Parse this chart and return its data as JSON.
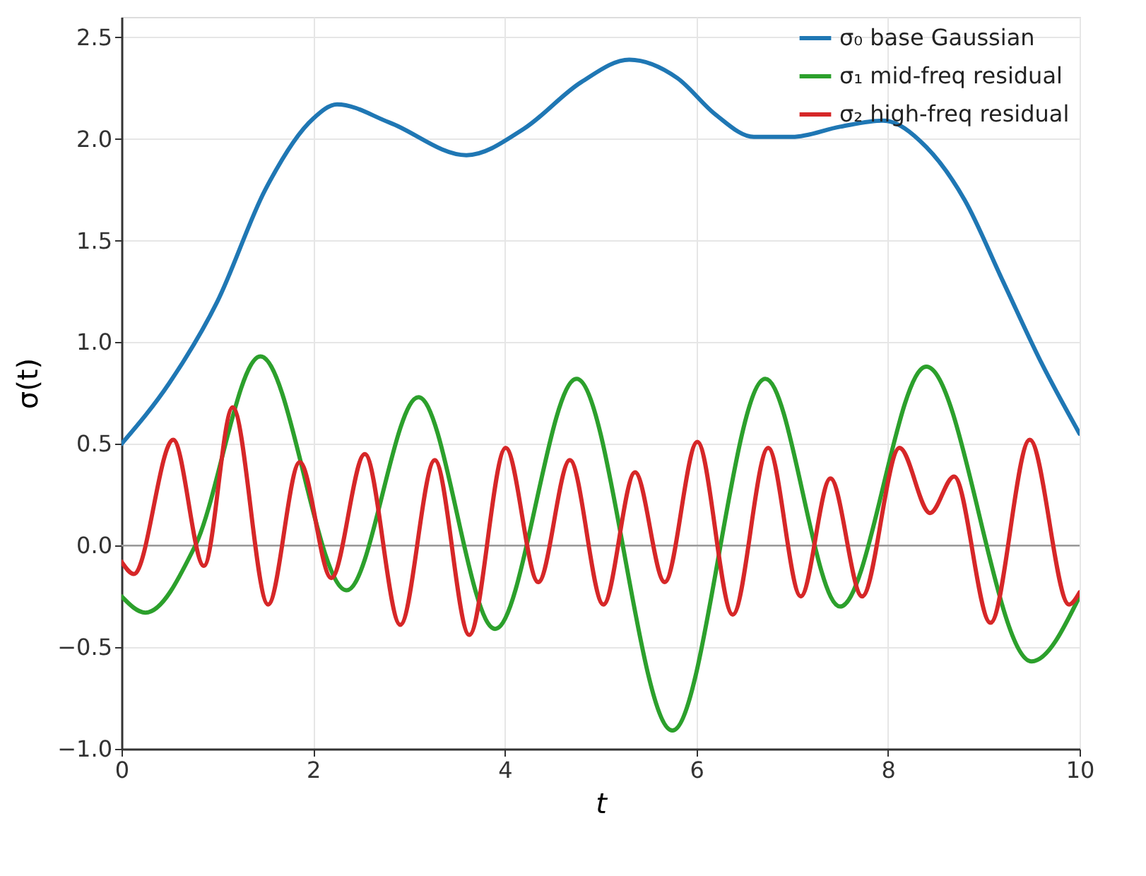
{
  "chart_data": {
    "type": "line",
    "xlabel": "t",
    "ylabel": "σ(t)",
    "xlim": [
      0,
      10
    ],
    "ylim": [
      -1.0,
      2.6
    ],
    "xticks": [
      0,
      2,
      4,
      6,
      8,
      10
    ],
    "yticks": [
      {
        "value": -1.0,
        "label": "−1.0"
      },
      {
        "value": -0.5,
        "label": "−0.5"
      },
      {
        "value": 0,
        "label": "0.0"
      },
      {
        "value": 0.5,
        "label": "0.5"
      },
      {
        "value": 1.0,
        "label": "1.0"
      },
      {
        "value": 1.5,
        "label": "1.5"
      },
      {
        "value": 2.0,
        "label": "2.0"
      },
      {
        "value": 2.5,
        "label": "2.5"
      }
    ],
    "grid": true,
    "legend": "top right",
    "marker": "none",
    "line_style": "solid",
    "ref_lines": [
      {
        "axis": "y",
        "value": 0,
        "color": "#999999"
      }
    ],
    "series": [
      {
        "name": "σ₀  base Gaussian",
        "color": "#1f77b4",
        "x": [
          0,
          0.5,
          1,
          1.5,
          2,
          2.25,
          2.8,
          3.6,
          4.2,
          4.8,
          5.3,
          5.8,
          6.2,
          6.6,
          7.0,
          7.5,
          7.95,
          8.4,
          8.8,
          9.2,
          9.6,
          10
        ],
        "values": [
          0.5,
          0.8,
          1.2,
          1.75,
          2.1,
          2.17,
          2.08,
          1.92,
          2.05,
          2.28,
          2.39,
          2.3,
          2.12,
          2.01,
          2.01,
          2.06,
          2.09,
          1.96,
          1.7,
          1.3,
          0.9,
          0.55
        ]
      },
      {
        "name": "σ₁  mid-freq residual",
        "color": "#2ca02c",
        "x": [
          0,
          0.25,
          0.77,
          1.45,
          2.35,
          3.1,
          3.9,
          4.75,
          5.75,
          6.72,
          7.5,
          8.4,
          9.5,
          10
        ],
        "values": [
          -0.25,
          -0.33,
          0,
          0.93,
          -0.22,
          0.73,
          -0.41,
          0.82,
          -0.91,
          0.82,
          -0.3,
          0.88,
          -0.57,
          -0.25
        ]
      },
      {
        "name": "σ₂  high-freq residual",
        "color": "#d62728",
        "x": [
          0,
          0.13,
          0.54,
          0.86,
          1.16,
          1.53,
          1.86,
          2.19,
          2.54,
          2.91,
          3.27,
          3.63,
          4.01,
          4.35,
          4.68,
          5.03,
          5.36,
          5.67,
          6.01,
          6.38,
          6.75,
          7.09,
          7.4,
          7.73,
          8.12,
          8.44,
          8.69,
          9.07,
          9.48,
          9.89,
          10
        ],
        "values": [
          -0.08,
          -0.14,
          0.52,
          -0.1,
          0.68,
          -0.29,
          0.41,
          -0.16,
          0.45,
          -0.39,
          0.42,
          -0.44,
          0.48,
          -0.18,
          0.42,
          -0.29,
          0.36,
          -0.18,
          0.51,
          -0.34,
          0.48,
          -0.25,
          0.33,
          -0.25,
          0.48,
          0.16,
          0.34,
          -0.38,
          0.52,
          -0.29,
          -0.23
        ]
      }
    ]
  }
}
